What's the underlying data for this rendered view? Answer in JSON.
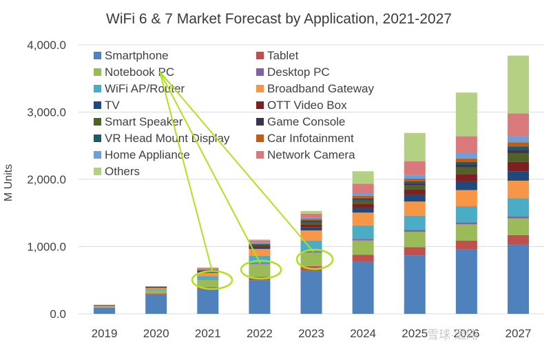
{
  "chart_data": {
    "type": "bar",
    "stacked": true,
    "title": "WiFi 6 & 7 Market Forecast by Application, 2021-2027",
    "xlabel": "",
    "ylabel": "M Units",
    "ylim": [
      0,
      4000
    ],
    "yticks": [
      "0.0",
      "1,000.0",
      "2,000.0",
      "3,000.0",
      "4,000.0"
    ],
    "ytick_values": [
      0,
      1000,
      2000,
      3000,
      4000
    ],
    "grid": true,
    "legend_position": "top-left",
    "categories": [
      "2019",
      "2020",
      "2021",
      "2022",
      "2023",
      "2024",
      "2025",
      "2026",
      "2027"
    ],
    "series": [
      {
        "name": "Smartphone",
        "color": "#4f81bd",
        "values": [
          90,
          290,
          370,
          500,
          640,
          780,
          870,
          960,
          1030
        ]
      },
      {
        "name": "Tablet",
        "color": "#c0504d",
        "values": [
          5,
          15,
          25,
          50,
          70,
          100,
          120,
          130,
          140
        ]
      },
      {
        "name": "Notebook PC",
        "color": "#9bbb59",
        "values": [
          20,
          40,
          110,
          190,
          200,
          210,
          230,
          240,
          250
        ]
      },
      {
        "name": "Desktop PC",
        "color": "#8064a2",
        "values": [
          2,
          5,
          10,
          15,
          20,
          25,
          30,
          30,
          30
        ]
      },
      {
        "name": "WiFi AP/Router",
        "color": "#4bacc6",
        "values": [
          5,
          15,
          45,
          110,
          160,
          200,
          210,
          240,
          270
        ]
      },
      {
        "name": "Broadband Gateway",
        "color": "#f79646",
        "values": [
          5,
          20,
          50,
          100,
          150,
          190,
          210,
          240,
          260
        ]
      },
      {
        "name": "TV",
        "color": "#1f497d",
        "values": [
          2,
          5,
          15,
          20,
          50,
          70,
          100,
          130,
          140
        ]
      },
      {
        "name": "OTT Video Box",
        "color": "#7f2020",
        "values": [
          2,
          5,
          15,
          20,
          40,
          60,
          80,
          110,
          140
        ]
      },
      {
        "name": "Smart Speaker",
        "color": "#4f6228",
        "values": [
          0,
          2,
          5,
          10,
          30,
          50,
          60,
          100,
          130
        ]
      },
      {
        "name": "Game Console",
        "color": "#3f3151",
        "values": [
          0,
          2,
          5,
          10,
          15,
          20,
          30,
          40,
          50
        ]
      },
      {
        "name": "VR Head Mount Display",
        "color": "#215968",
        "values": [
          0,
          2,
          5,
          10,
          15,
          20,
          30,
          40,
          50
        ]
      },
      {
        "name": "Car Infotainment",
        "color": "#c55a11",
        "values": [
          0,
          2,
          5,
          10,
          20,
          30,
          40,
          50,
          60
        ]
      },
      {
        "name": "Home Appliance",
        "color": "#6f9fd8",
        "values": [
          0,
          2,
          5,
          10,
          20,
          40,
          60,
          80,
          90
        ]
      },
      {
        "name": "Network Camera",
        "color": "#d9797b",
        "values": [
          0,
          5,
          20,
          40,
          60,
          140,
          200,
          250,
          340
        ]
      },
      {
        "name": "Others",
        "color": "#b3d083",
        "values": [
          0,
          0,
          5,
          10,
          40,
          185,
          420,
          650,
          860
        ]
      }
    ]
  },
  "watermark": "雪球·混沌·"
}
